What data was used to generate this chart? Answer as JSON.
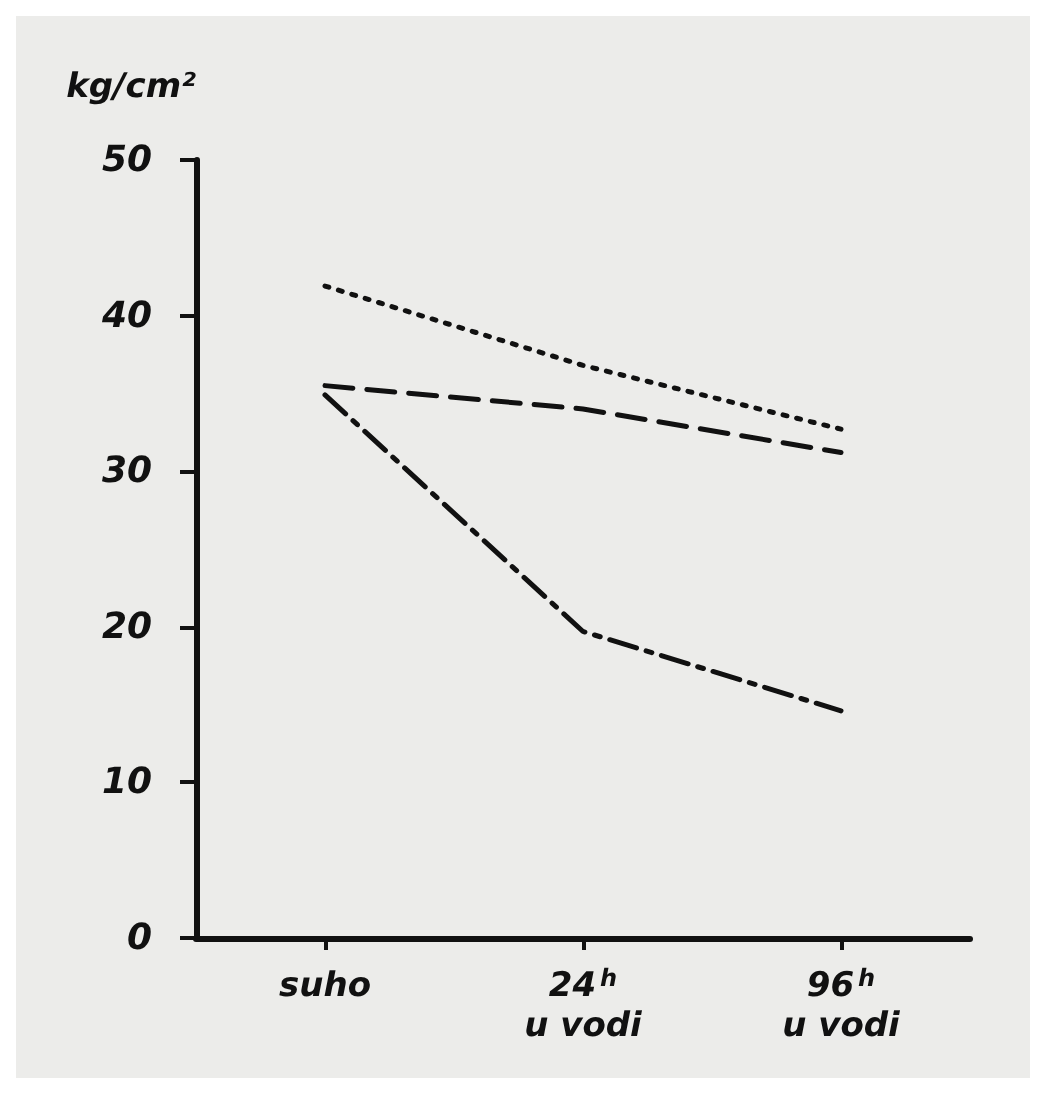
{
  "chart_data": {
    "type": "line",
    "ylabel": "kg/cm²",
    "categories": [
      "suho",
      "24$^{h}$\nu vodi",
      "96$^{h}$\nu vodi"
    ],
    "series": [
      {
        "color": "#111111",
        "line_style": "dotted",
        "values": [
          41.9,
          36.8,
          32.7
        ]
      },
      {
        "color": "#111111",
        "line_style": "dashed",
        "values": [
          35.5,
          34,
          31.2
        ]
      },
      {
        "color": "#111111",
        "line_style": "dashdot",
        "values": [
          34.9,
          19.7,
          14.6
        ]
      }
    ],
    "ylim": [
      0,
      50
    ],
    "yticks": [
      0,
      10,
      20,
      30,
      40,
      50
    ],
    "grid": false,
    "marker": "none"
  }
}
